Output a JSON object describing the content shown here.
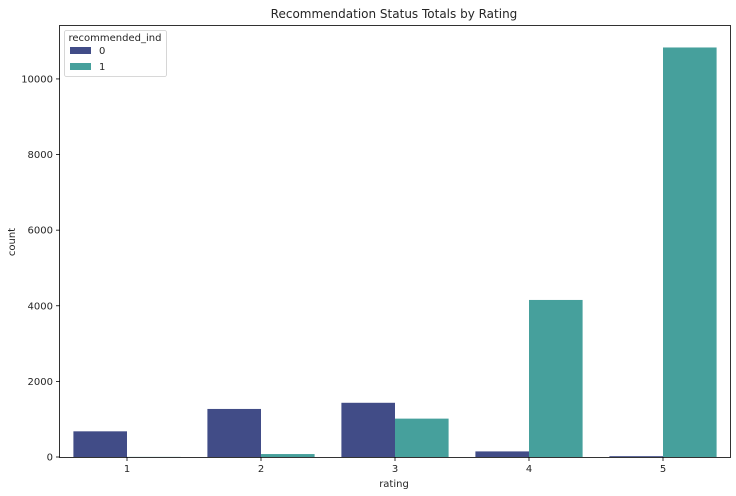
{
  "chart_data": {
    "type": "bar",
    "title": "Recommendation Status Totals by Rating",
    "xlabel": "rating",
    "ylabel": "count",
    "categories": [
      "1",
      "2",
      "3",
      "4",
      "5"
    ],
    "ylim": [
      0,
      11400
    ],
    "yticks": [
      0,
      2000,
      4000,
      6000,
      8000,
      10000
    ],
    "grid": false,
    "legend": {
      "title": "recommended_ind",
      "placement": "top-left"
    },
    "series": [
      {
        "name": "0",
        "color": "#414c87",
        "values": [
          679,
          1271,
          1434,
          148,
          22
        ]
      },
      {
        "name": "1",
        "color": "#46a09c",
        "values": [
          3,
          78,
          1015,
          4154,
          10832
        ]
      }
    ]
  }
}
